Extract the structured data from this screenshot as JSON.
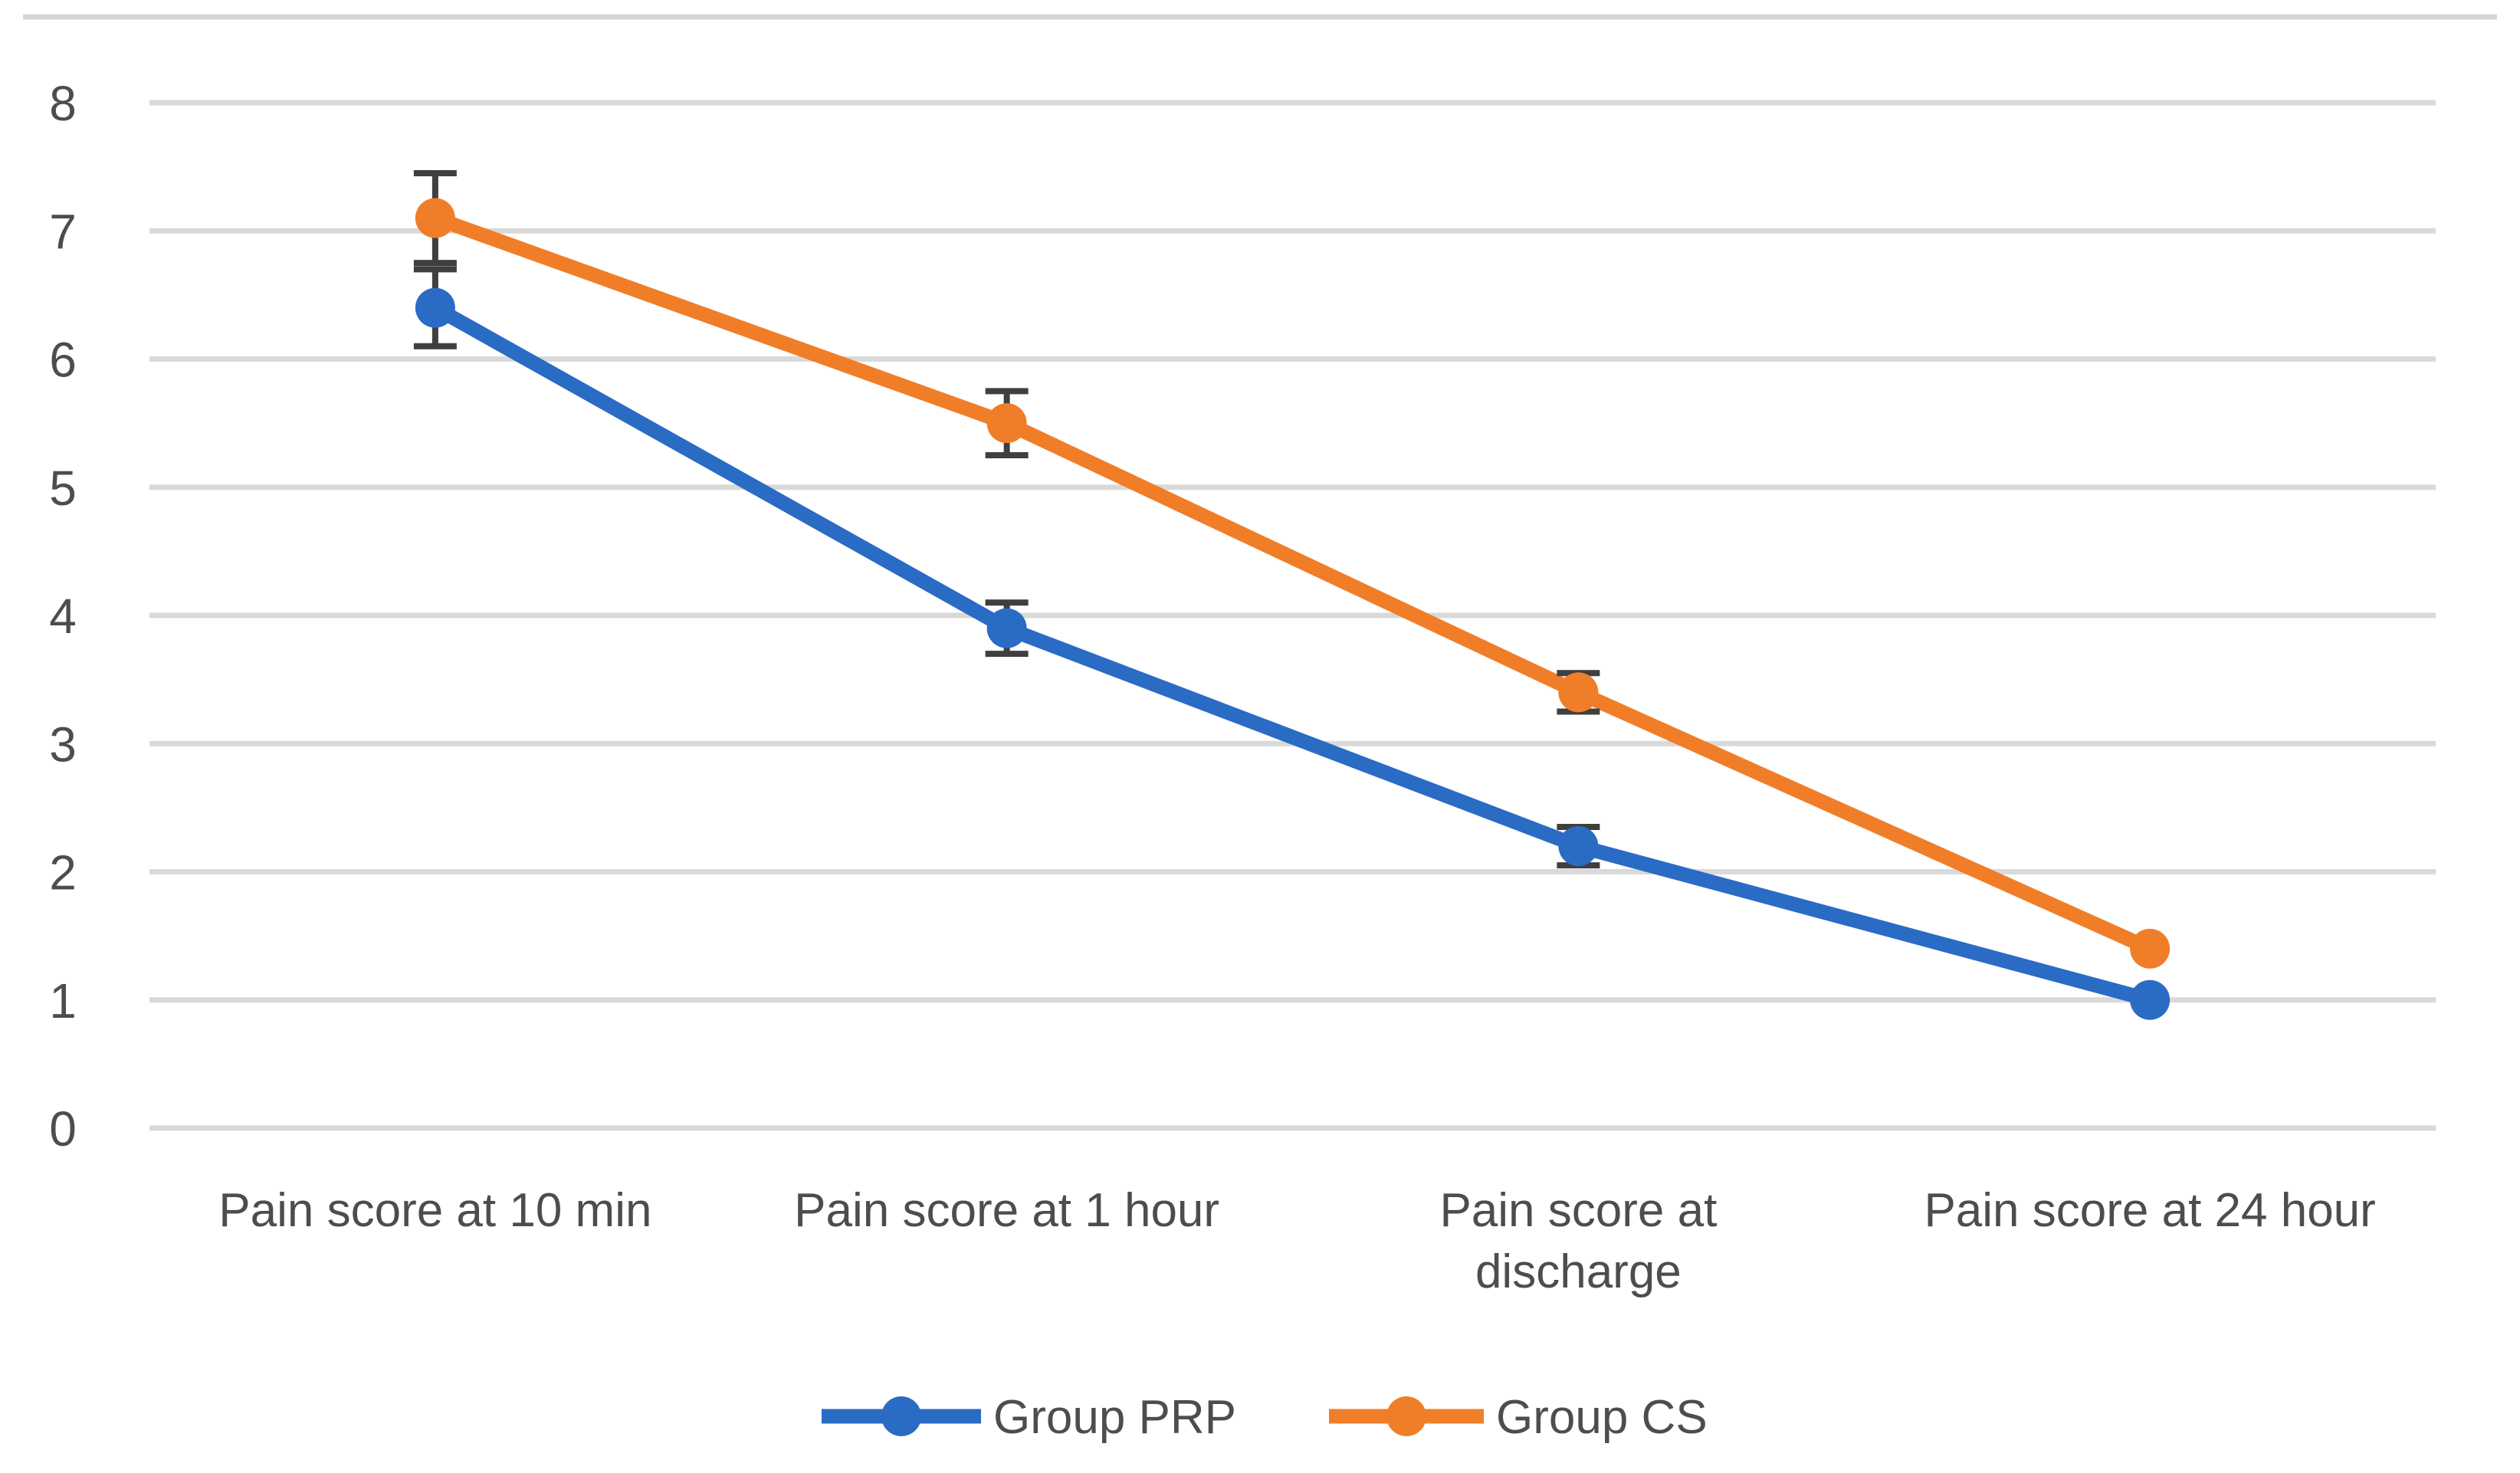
{
  "figure": {
    "background": "#ffffff",
    "top_border_color": "#d5d5d5"
  },
  "chart_data": {
    "type": "line",
    "title": "",
    "xlabel": "",
    "ylabel": "",
    "ylim": [
      0,
      8
    ],
    "yticks": [
      8,
      7,
      6,
      5,
      4,
      3,
      2,
      1,
      0
    ],
    "grid": true,
    "gridline_color": "#d9d9d9",
    "errorbar_color": "#3f3f3f",
    "tick_label_color": "#4d4d4d",
    "legend_position": "bottom",
    "categories": [
      "Pain score at 10 min",
      "Pain score at 1 hour",
      "Pain score at discharge",
      "Pain score at 24 hour"
    ],
    "category_label_lines": [
      [
        "Pain score at 10 min"
      ],
      [
        "Pain score at 1 hour"
      ],
      [
        "Pain score at",
        "discharge"
      ],
      [
        "Pain score at 24 hour"
      ]
    ],
    "series": [
      {
        "name": "Group PRP",
        "color": "#2a6bc4",
        "values": [
          6.4,
          3.9,
          2.2,
          1.0
        ],
        "error_low": [
          6.1,
          3.7,
          2.05,
          null
        ],
        "error_high": [
          6.7,
          4.1,
          2.35,
          null
        ]
      },
      {
        "name": "Group CS",
        "color": "#f07e28",
        "values": [
          7.1,
          5.5,
          3.4,
          1.4
        ],
        "error_low": [
          6.75,
          5.25,
          3.25,
          null
        ],
        "error_high": [
          7.45,
          5.75,
          3.55,
          null
        ]
      }
    ]
  }
}
